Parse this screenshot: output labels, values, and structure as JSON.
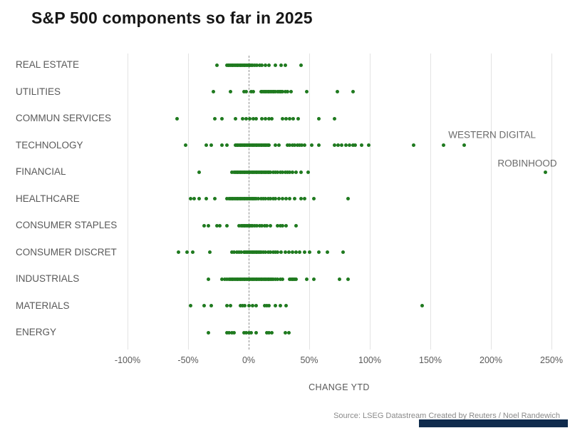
{
  "chart_data": {
    "type": "scatter",
    "subtype": "strip-plot",
    "title": "S&P 500 components so far in 2025",
    "xlabel": "CHANGE YTD",
    "source": "Source: LSEG Datastream  Created by Reuters / Noel Randewich",
    "xlim": [
      -100,
      250
    ],
    "x_ticks": [
      -100,
      -50,
      0,
      50,
      100,
      150,
      200,
      250
    ],
    "x_tick_labels": [
      "-100%",
      "-50%",
      "0%",
      "50%",
      "100%",
      "150%",
      "200%",
      "250%"
    ],
    "grid": "vertical-light",
    "zero_line": "dashed-gray",
    "legend": "none",
    "categories": [
      "REAL ESTATE",
      "UTILITIES",
      "COMMUN SERVICES",
      "TECHNOLOGY",
      "FINANCIAL",
      "HEALTHCARE",
      "CONSUMER STAPLES",
      "CONSUMER DISCRET",
      "INDUSTRIALS",
      "MATERIALS",
      "ENERGY"
    ],
    "series": [
      {
        "name": "REAL ESTATE",
        "values": [
          -26,
          -18,
          -17,
          -16,
          -15,
          -14,
          -13,
          -12,
          -11,
          -10,
          -9,
          -8,
          -7,
          -6,
          -5,
          -4,
          -3,
          -2,
          -1,
          0,
          1,
          2,
          3,
          5,
          7,
          9,
          11,
          14,
          17,
          22,
          27,
          30,
          43
        ]
      },
      {
        "name": "UTILITIES",
        "values": [
          -29,
          -15,
          -4,
          -2,
          2,
          4,
          10,
          11,
          12,
          13,
          14,
          15,
          16,
          17,
          18,
          19,
          20,
          21,
          22,
          24,
          25,
          26,
          27,
          28,
          30,
          32,
          35,
          48,
          73,
          86
        ]
      },
      {
        "name": "COMMUN SERVICES",
        "values": [
          -59,
          -28,
          -22,
          -11,
          -5,
          -2,
          1,
          4,
          6,
          11,
          14,
          17,
          19,
          28,
          31,
          34,
          37,
          41,
          58,
          71
        ]
      },
      {
        "name": "TECHNOLOGY",
        "values": [
          -52,
          -35,
          -31,
          -22,
          -18,
          -11,
          -10,
          -9,
          -8,
          -7,
          -6,
          -5,
          -4,
          -3,
          -2,
          -1,
          0,
          1,
          2,
          3,
          4,
          5,
          6,
          7,
          8,
          9,
          10,
          11,
          12,
          13,
          14,
          15,
          16,
          17,
          22,
          25,
          32,
          34,
          36,
          38,
          40,
          42,
          44,
          46,
          52,
          58,
          71,
          74,
          77,
          80,
          83,
          86,
          88,
          93,
          99,
          136,
          161,
          178
        ]
      },
      {
        "name": "FINANCIAL",
        "values": [
          -41,
          -14,
          -12,
          -11,
          -10,
          -9,
          -8,
          -7,
          -6,
          -5,
          -4,
          -3,
          -2,
          -1,
          0,
          1,
          2,
          3,
          4,
          5,
          6,
          7,
          8,
          9,
          10,
          11,
          12,
          13,
          14,
          15,
          16,
          17,
          18,
          20,
          22,
          24,
          26,
          28,
          30,
          32,
          34,
          36,
          39,
          43,
          49,
          245
        ]
      },
      {
        "name": "HEALTHCARE",
        "values": [
          -48,
          -45,
          -41,
          -35,
          -28,
          -18,
          -16,
          -15,
          -14,
          -13,
          -12,
          -11,
          -10,
          -9,
          -8,
          -7,
          -6,
          -5,
          -4,
          -3,
          -2,
          -1,
          0,
          1,
          2,
          3,
          4,
          5,
          6,
          8,
          10,
          12,
          14,
          16,
          18,
          20,
          22,
          25,
          28,
          31,
          34,
          38,
          43,
          46,
          54,
          82
        ]
      },
      {
        "name": "CONSUMER STAPLES",
        "values": [
          -37,
          -33,
          -26,
          -24,
          -18,
          -8,
          -6,
          -5,
          -4,
          -3,
          -2,
          -1,
          0,
          1,
          2,
          3,
          5,
          7,
          9,
          11,
          13,
          15,
          18,
          24,
          26,
          28,
          31,
          39
        ]
      },
      {
        "name": "CONSUMER DISCRET",
        "values": [
          -58,
          -51,
          -46,
          -32,
          -14,
          -12,
          -10,
          -8,
          -6,
          -4,
          -3,
          -2,
          -1,
          0,
          1,
          2,
          3,
          4,
          5,
          6,
          7,
          8,
          9,
          10,
          12,
          14,
          16,
          18,
          20,
          22,
          24,
          27,
          30,
          33,
          36,
          39,
          42,
          46,
          50,
          58,
          65,
          78
        ]
      },
      {
        "name": "INDUSTRIALS",
        "values": [
          -33,
          -22,
          -20,
          -18,
          -16,
          -15,
          -14,
          -13,
          -12,
          -11,
          -10,
          -9,
          -8,
          -7,
          -6,
          -5,
          -4,
          -3,
          -2,
          -1,
          0,
          1,
          2,
          3,
          4,
          5,
          6,
          7,
          8,
          9,
          10,
          11,
          12,
          13,
          14,
          15,
          16,
          17,
          18,
          19,
          20,
          22,
          24,
          26,
          28,
          34,
          35,
          36,
          37,
          38,
          39,
          48,
          54,
          75,
          82
        ]
      },
      {
        "name": "MATERIALS",
        "values": [
          -48,
          -37,
          -31,
          -18,
          -15,
          -7,
          -5,
          -3,
          0,
          3,
          6,
          13,
          15,
          17,
          22,
          26,
          31,
          143
        ]
      },
      {
        "name": "ENERGY",
        "values": [
          -33,
          -18,
          -16,
          -14,
          -12,
          -4,
          -2,
          0,
          2,
          6,
          15,
          17,
          19,
          30,
          33
        ]
      }
    ],
    "annotations": [
      {
        "label": "WESTERN DIGITAL",
        "category": "TECHNOLOGY",
        "dot_x": 178,
        "label_x": 201,
        "label_dy": -15
      },
      {
        "label": "ROBINHOOD",
        "category": "FINANCIAL",
        "dot_x": 245,
        "label_x": 230,
        "label_dy": -12
      }
    ],
    "colors": {
      "dot": "#1f7a1f",
      "grid": "#e3e3e3",
      "zero_line": "#8f8f8f",
      "text_muted": "#595959",
      "brand_bar": "#0f2b4d"
    }
  }
}
